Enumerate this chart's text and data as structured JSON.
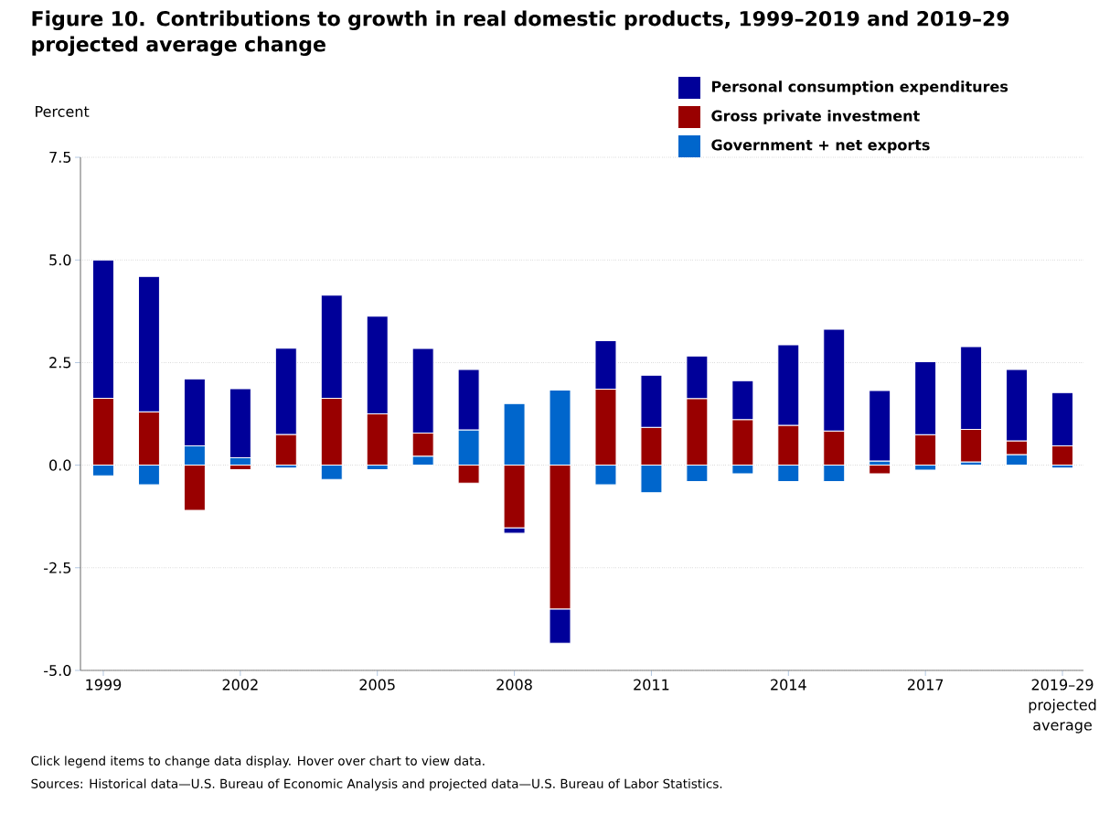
{
  "chart_data": {
    "type": "bar",
    "title": "Figure 10. Contributions to growth in real domestic products, 1999–2019 and 2019–29 projected average change",
    "ylabel": "Percent",
    "categories": [
      "1999",
      null,
      null,
      "2002",
      null,
      null,
      "2005",
      null,
      null,
      "2008",
      null,
      null,
      "2011",
      null,
      null,
      "2014",
      null,
      null,
      "2017",
      null,
      null,
      "2019–29 projected average"
    ],
    "stacked": true,
    "series": [
      {
        "name": "Government + net exports",
        "color": "#0066cc",
        "values": [
          -0.26,
          -0.48,
          0.47,
          0.18,
          -0.07,
          -0.35,
          -0.11,
          0.22,
          0.86,
          1.5,
          1.83,
          -0.48,
          -0.67,
          -0.4,
          -0.21,
          -0.4,
          -0.4,
          0.1,
          -0.12,
          0.08,
          0.26,
          -0.07
        ]
      },
      {
        "name": "Gross private investment",
        "color": "#990000",
        "values": [
          1.63,
          1.3,
          -1.1,
          -0.11,
          0.75,
          1.63,
          1.25,
          0.56,
          -0.44,
          -1.53,
          -3.51,
          1.85,
          0.92,
          1.62,
          1.11,
          0.97,
          0.83,
          -0.21,
          0.74,
          0.79,
          0.33,
          0.47
        ]
      },
      {
        "name": "Personal consumption expenditures",
        "color": "#000099",
        "values": [
          3.37,
          3.3,
          1.63,
          1.68,
          2.1,
          2.51,
          2.38,
          2.06,
          1.47,
          -0.13,
          -0.83,
          1.18,
          1.27,
          1.04,
          0.95,
          1.96,
          2.48,
          1.72,
          1.78,
          2.02,
          1.74,
          1.3
        ]
      }
    ],
    "ylim": [
      -5,
      7.5
    ],
    "yticks": [
      {
        "value": -5,
        "label": "-5.0"
      },
      {
        "value": -2.5,
        "label": "-2.5"
      },
      {
        "value": 0,
        "label": "0.0"
      },
      {
        "value": 2.5,
        "label": "2.5"
      },
      {
        "value": 5,
        "label": "5.0"
      },
      {
        "value": 7.5,
        "label": "7.5"
      }
    ],
    "grid": "y",
    "legend": "top right",
    "annotations": [
      "Click legend items to change data display. Hover over chart to view data.",
      "Sources: Historical data—U.S. Bureau of Economic Analysis and projected data—U.S. Bureau of Labor Statistics."
    ]
  }
}
